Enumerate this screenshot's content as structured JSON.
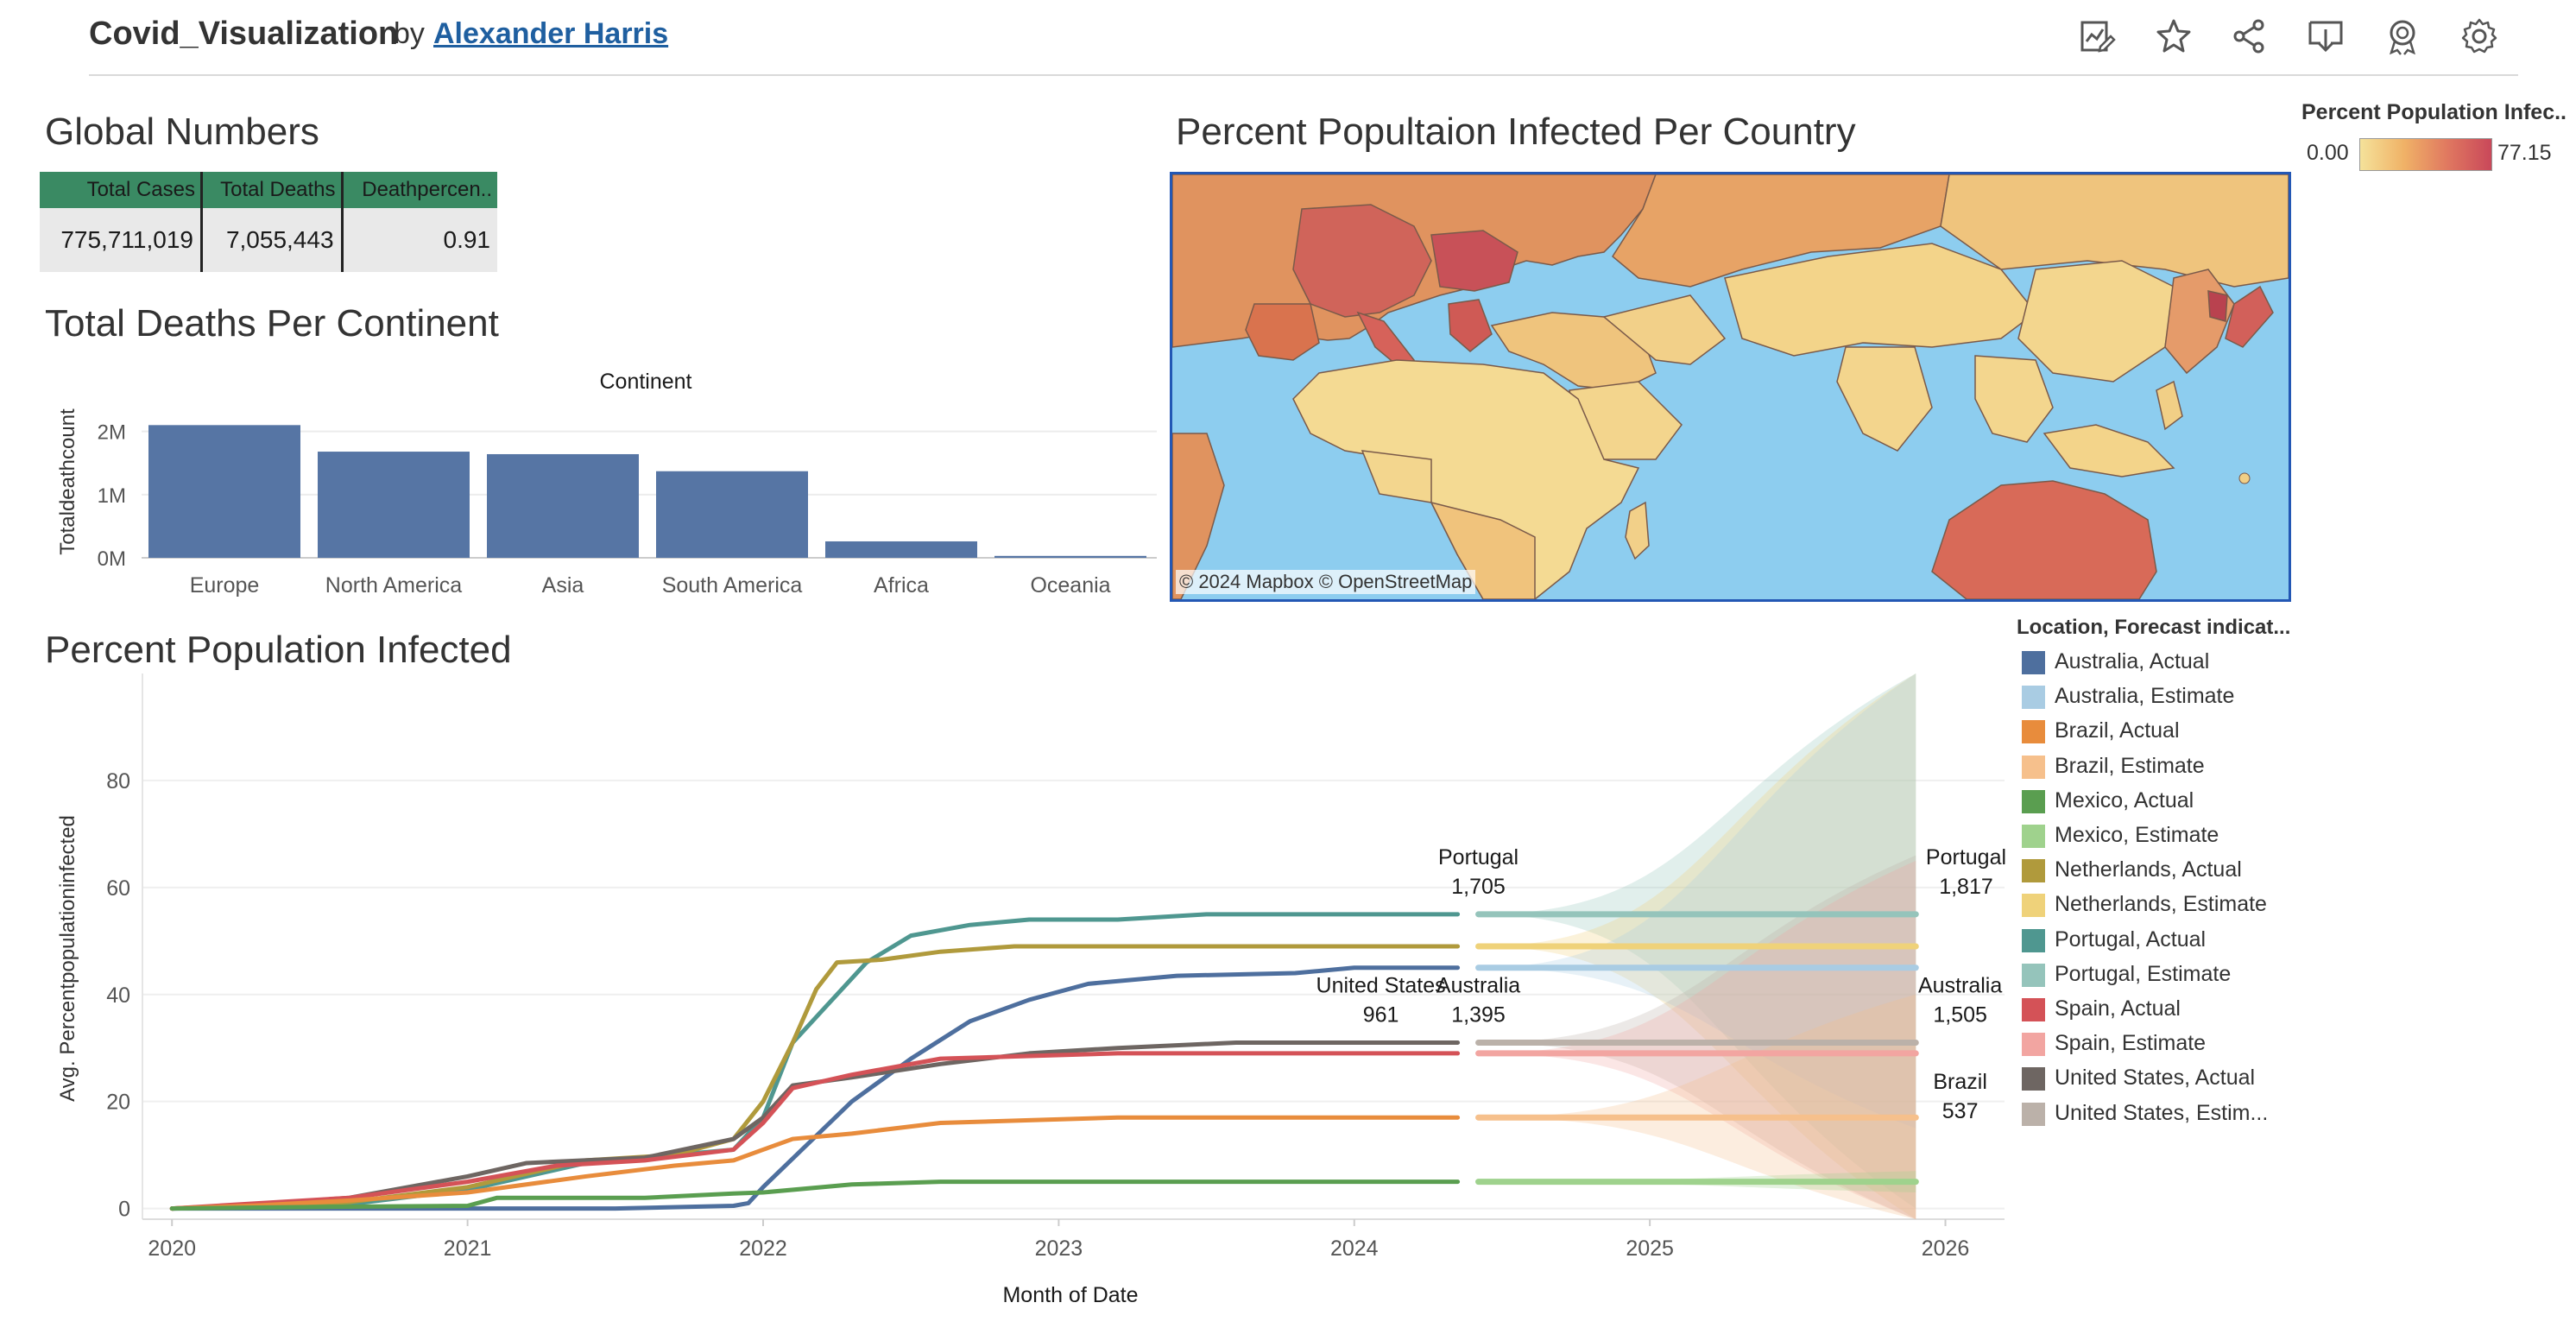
{
  "header": {
    "title": "Covid_Visualization",
    "by": "by",
    "author": "Alexander Harris",
    "icons": [
      "metrics-icon",
      "favorite-star-icon",
      "share-icon",
      "download-icon",
      "badge-icon",
      "settings-gear-icon"
    ]
  },
  "global_numbers": {
    "title": "Global Numbers",
    "headers": [
      "Total Cases",
      "Total Deaths",
      "Deathpercen.."
    ],
    "values": [
      "775,711,019",
      "7,055,443",
      "0.91"
    ]
  },
  "deaths_chart": {
    "title": "Total Deaths Per Continent"
  },
  "map": {
    "title": "Percent Popultaion Infected Per Country",
    "credit": "© 2024 Mapbox  © OpenStreetMap"
  },
  "color_legend": {
    "title": "Percent Population Infec..",
    "min": "0.00",
    "max": "77.15"
  },
  "infected_chart": {
    "title": "Percent Population Infected"
  },
  "line_legend": {
    "title": "Location, Forecast indicat...",
    "items": [
      {
        "label": "Australia, Actual",
        "color": "#4e6f9e"
      },
      {
        "label": "Australia, Estimate",
        "color": "#a9cce3"
      },
      {
        "label": "Brazil, Actual",
        "color": "#e88c3c"
      },
      {
        "label": "Brazil, Estimate",
        "color": "#f6c08c"
      },
      {
        "label": "Mexico, Actual",
        "color": "#5a9e50"
      },
      {
        "label": "Mexico, Estimate",
        "color": "#9fd28d"
      },
      {
        "label": "Netherlands, Actual",
        "color": "#b09a3c"
      },
      {
        "label": "Netherlands, Estimate",
        "color": "#efd27a"
      },
      {
        "label": "Portugal, Actual",
        "color": "#4f9790"
      },
      {
        "label": "Portugal, Estimate",
        "color": "#95c4bb"
      },
      {
        "label": "Spain, Actual",
        "color": "#d45257"
      },
      {
        "label": "Spain, Estimate",
        "color": "#f2a5a1"
      },
      {
        "label": "United States, Actual",
        "color": "#6e6662"
      },
      {
        "label": "United States, Estim...",
        "color": "#bbb1a9"
      }
    ]
  },
  "chart_data": [
    {
      "type": "bar",
      "title": "Total Deaths Per Continent",
      "header_label": "Continent",
      "xlabel": "",
      "ylabel": "Totaldeathcount",
      "categories": [
        "Europe",
        "North America",
        "Asia",
        "South America",
        "Africa",
        "Oceania"
      ],
      "values": [
        2100000,
        1680000,
        1640000,
        1370000,
        260000,
        30000
      ],
      "ylim": [
        0,
        2200000
      ],
      "yticks": [
        0,
        1000000,
        2000000
      ],
      "ytick_labels": [
        "0M",
        "1M",
        "2M"
      ],
      "color": "#5675a4"
    },
    {
      "type": "line",
      "title": "Percent Population Infected",
      "xlabel": "Month of Date",
      "ylabel": "Avg. Percentpopulationinfected",
      "xlim": [
        2019.9,
        2026.2
      ],
      "ylim": [
        -2,
        100
      ],
      "xticks": [
        2020,
        2021,
        2022,
        2023,
        2024,
        2025,
        2026
      ],
      "yticks": [
        0,
        20,
        40,
        60,
        80
      ],
      "series": [
        {
          "name": "Portugal, Actual",
          "color": "#4f9790",
          "x": [
            2020,
            2020.3,
            2020.6,
            2021,
            2021.4,
            2021.7,
            2021.9,
            2022,
            2022.1,
            2022.2,
            2022.35,
            2022.5,
            2022.7,
            2022.9,
            2023.2,
            2023.5,
            2024,
            2024.35
          ],
          "y": [
            0,
            0.3,
            0.8,
            3.5,
            8.5,
            10,
            11,
            17,
            31,
            37,
            46,
            51,
            53,
            54,
            54,
            55,
            55,
            55
          ]
        },
        {
          "name": "Netherlands, Actual",
          "color": "#b09a3c",
          "x": [
            2020,
            2020.3,
            2020.6,
            2021,
            2021.4,
            2021.7,
            2021.9,
            2022,
            2022.1,
            2022.18,
            2022.25,
            2022.4,
            2022.6,
            2022.85,
            2023.2,
            2024,
            2024.35
          ],
          "y": [
            0,
            0.5,
            1.2,
            4,
            9,
            10,
            13,
            20,
            31,
            41,
            46,
            46.5,
            48,
            49,
            49,
            49,
            49
          ]
        },
        {
          "name": "Australia, Actual",
          "color": "#4e6f9e",
          "x": [
            2020,
            2021.5,
            2021.9,
            2021.95,
            2022,
            2022.15,
            2022.3,
            2022.5,
            2022.7,
            2022.9,
            2023.1,
            2023.4,
            2023.8,
            2024,
            2024.35
          ],
          "y": [
            0,
            0,
            0.5,
            1,
            4,
            12,
            20,
            28,
            35,
            39,
            42,
            43.5,
            44,
            45,
            45
          ]
        },
        {
          "name": "United States, Actual",
          "color": "#6e6662",
          "x": [
            2020,
            2020.3,
            2020.6,
            2021,
            2021.2,
            2021.6,
            2021.9,
            2022,
            2022.1,
            2022.3,
            2022.6,
            2022.9,
            2023.2,
            2023.6,
            2024,
            2024.35
          ],
          "y": [
            0,
            0.8,
            2,
            6,
            8.5,
            9.5,
            13,
            17,
            23,
            24.5,
            27,
            29,
            30,
            31,
            31,
            31
          ]
        },
        {
          "name": "Spain, Actual",
          "color": "#d45257",
          "x": [
            2020,
            2020.3,
            2020.6,
            2021,
            2021.3,
            2021.6,
            2021.9,
            2022,
            2022.1,
            2022.3,
            2022.6,
            2022.9,
            2023.2,
            2024,
            2024.35
          ],
          "y": [
            0,
            1,
            2,
            5,
            8,
            9,
            11,
            16,
            22.5,
            25,
            28,
            28.5,
            29,
            29,
            29
          ]
        },
        {
          "name": "Brazil, Actual",
          "color": "#e88c3c",
          "x": [
            2020,
            2020.3,
            2020.6,
            2021,
            2021.4,
            2021.7,
            2021.9,
            2022,
            2022.1,
            2022.3,
            2022.6,
            2022.9,
            2023.2,
            2024,
            2024.35
          ],
          "y": [
            0,
            0.6,
            1.5,
            3,
            6,
            8,
            9,
            11,
            13,
            14,
            16,
            16.5,
            17,
            17,
            17
          ]
        },
        {
          "name": "Mexico, Actual",
          "color": "#5a9e50",
          "x": [
            2020,
            2020.5,
            2021,
            2021.1,
            2021.6,
            2021.9,
            2022,
            2022.3,
            2022.6,
            2022.9,
            2024,
            2024.35
          ],
          "y": [
            0,
            0.3,
            0.5,
            2,
            2,
            2.8,
            3,
            4.5,
            5,
            5,
            5,
            5
          ]
        },
        {
          "name": "Portugal, Estimate",
          "color": "#95c4bb",
          "x": [
            2024.42,
            2025.9
          ],
          "y": [
            55,
            55
          ],
          "band": [
            [
              55,
              55
            ],
            [
              0,
              100
            ]
          ]
        },
        {
          "name": "Netherlands, Estimate",
          "color": "#efd27a",
          "x": [
            2024.42,
            2025.9
          ],
          "y": [
            49,
            49
          ],
          "band": [
            [
              49,
              49
            ],
            [
              -2,
              100
            ]
          ]
        },
        {
          "name": "Australia, Estimate",
          "color": "#a9cce3",
          "x": [
            2024.42,
            2025.9
          ],
          "y": [
            45,
            45
          ],
          "band": [
            [
              45,
              45
            ],
            [
              15,
              100
            ]
          ]
        },
        {
          "name": "United States, Estim...",
          "color": "#bbb1a9",
          "x": [
            2024.42,
            2025.9
          ],
          "y": [
            31,
            31
          ],
          "band": [
            [
              31,
              31
            ],
            [
              -2,
              66
            ]
          ]
        },
        {
          "name": "Spain, Estimate",
          "color": "#f2a5a1",
          "x": [
            2024.42,
            2025.9
          ],
          "y": [
            29,
            29
          ],
          "band": [
            [
              29,
              29
            ],
            [
              -2,
              65
            ]
          ]
        },
        {
          "name": "Brazil, Estimate",
          "color": "#f6c08c",
          "x": [
            2024.42,
            2025.9
          ],
          "y": [
            17,
            17
          ],
          "band": [
            [
              17,
              17
            ],
            [
              -2,
              40
            ]
          ]
        },
        {
          "name": "Mexico, Estimate",
          "color": "#9fd28d",
          "x": [
            2024.42,
            2025.9
          ],
          "y": [
            5,
            5
          ],
          "band": [
            [
              5,
              5
            ],
            [
              3,
              7
            ]
          ]
        }
      ],
      "annotations": [
        {
          "name": "Portugal",
          "value": "1,705",
          "x": 2024.42,
          "y": 55,
          "anchor": "middle",
          "dy": -2
        },
        {
          "name": "United States",
          "value": "961",
          "x": 2024.09,
          "y": 31,
          "anchor": "middle",
          "dy": -2
        },
        {
          "name": "Australia",
          "value": "1,395",
          "x": 2024.42,
          "y": 31,
          "anchor": "middle",
          "dy": -2
        },
        {
          "name": "Portugal",
          "value": "1,817",
          "x": 2026.07,
          "y": 55,
          "anchor": "middle",
          "dy": -2
        },
        {
          "name": "Australia",
          "value": "1,505",
          "x": 2026.05,
          "y": 31,
          "anchor": "middle",
          "dy": -2
        },
        {
          "name": "Brazil",
          "value": "537",
          "x": 2026.05,
          "y": 13,
          "anchor": "middle",
          "dy": 0
        }
      ]
    }
  ]
}
